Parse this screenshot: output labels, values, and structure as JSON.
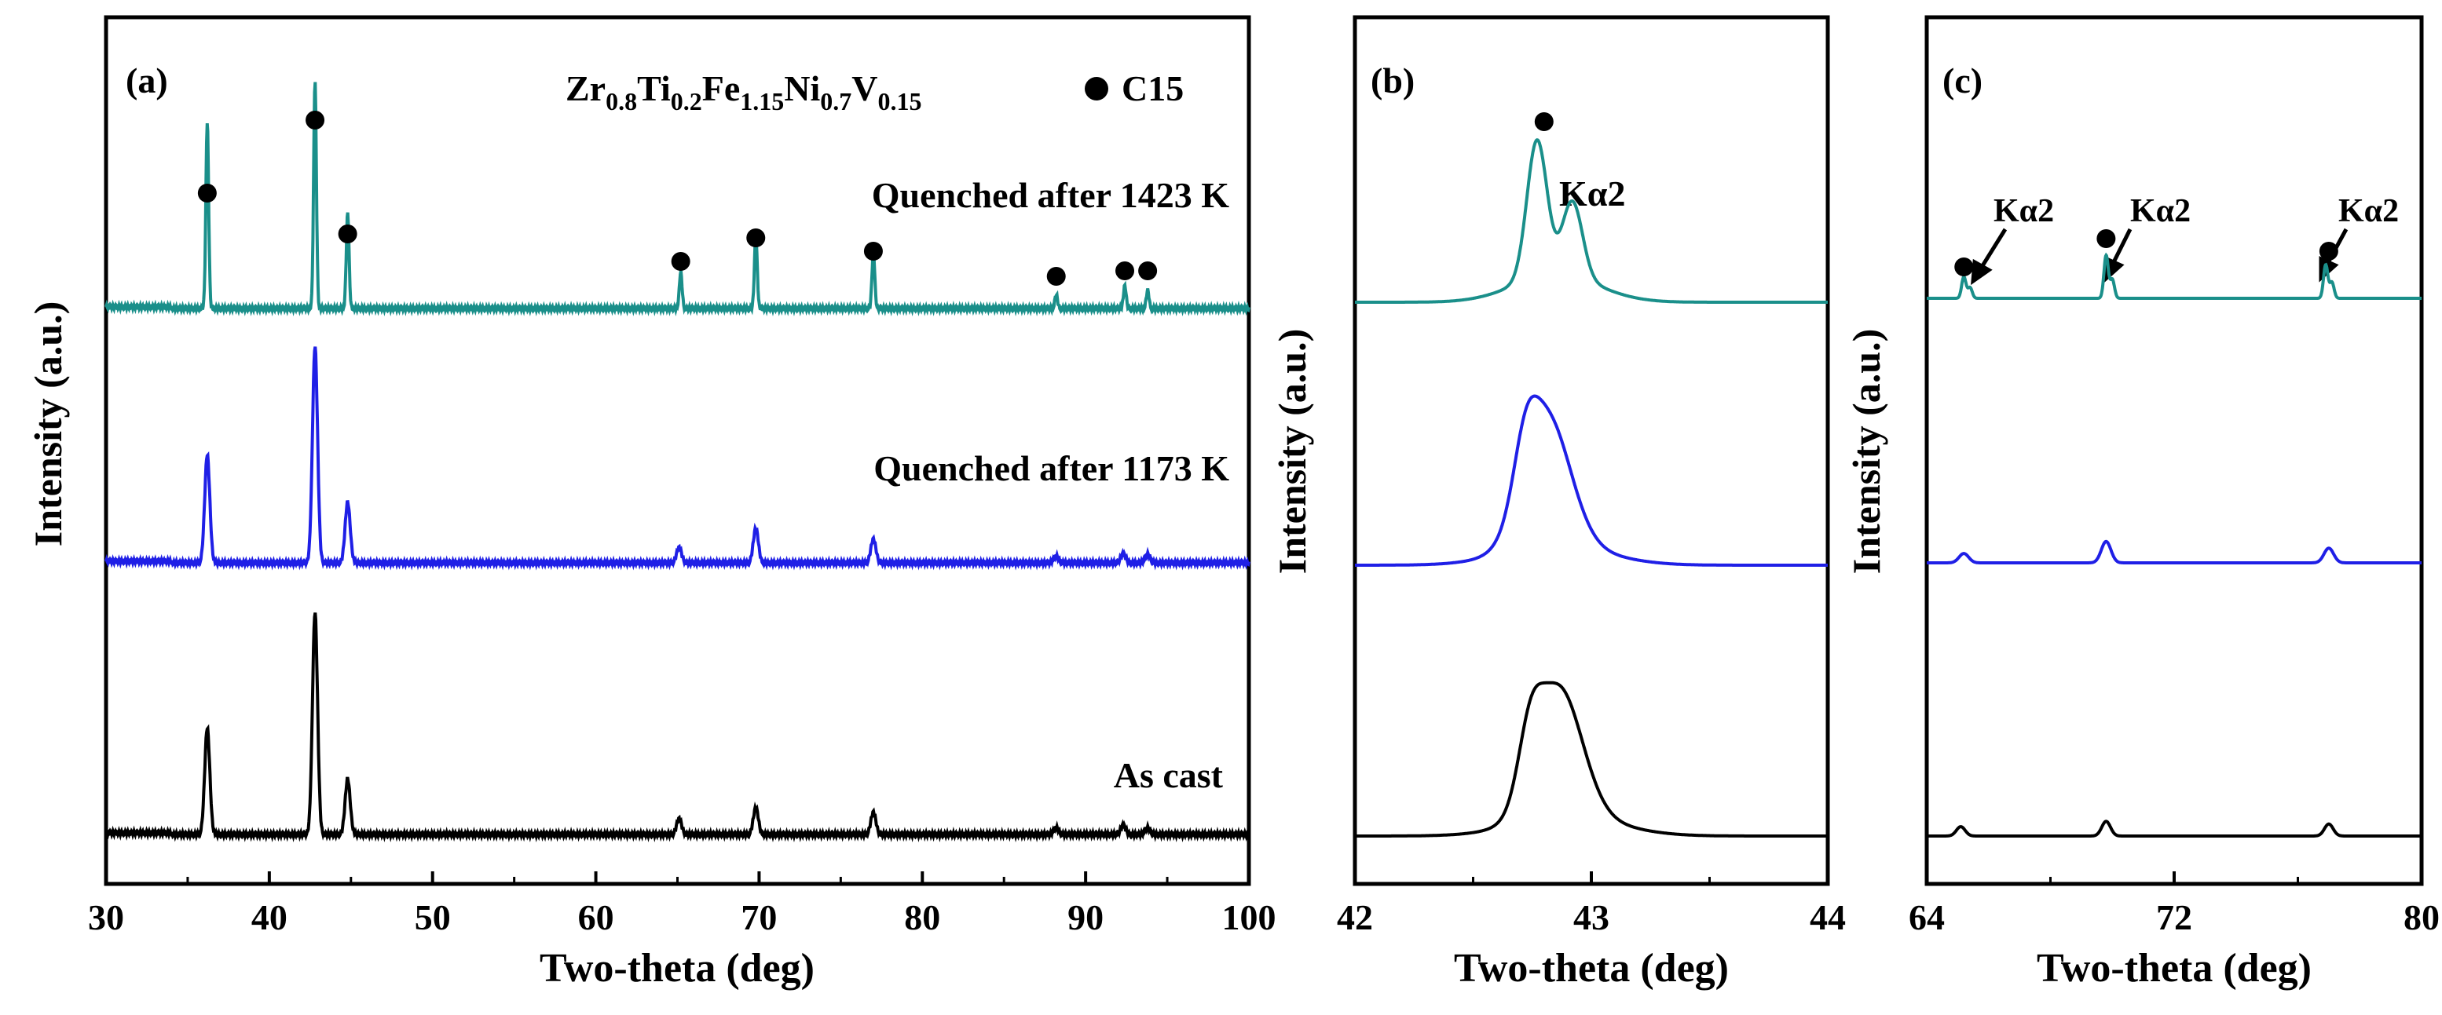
{
  "chart_data": [
    {
      "panel": "(a)",
      "type": "line",
      "xlabel": "Two-theta (deg)",
      "ylabel": "Intensity (a.u.)",
      "xlim": [
        30,
        100
      ],
      "xticks": [
        "30",
        "40",
        "50",
        "60",
        "70",
        "80",
        "90",
        "100"
      ],
      "grid": false,
      "composition": {
        "base": [
          "Zr",
          "Ti",
          "Fe",
          "Ni",
          "V"
        ],
        "sub": [
          "0.8",
          "0.2",
          "1.15",
          "0.7",
          "0.15"
        ]
      },
      "legend_marker_label": "C15",
      "series": [
        {
          "name": "Quenched after 1423 K",
          "color": "#1a8f8a",
          "offset": 2,
          "peaks": [
            [
              36.2,
              0.82
            ],
            [
              42.8,
              1.0
            ],
            [
              44.8,
              0.42
            ],
            [
              65.2,
              0.16
            ],
            [
              69.8,
              0.32
            ],
            [
              77.0,
              0.25
            ],
            [
              88.2,
              0.06
            ],
            [
              92.4,
              0.1
            ],
            [
              93.8,
              0.08
            ]
          ],
          "width": 0.12
        },
        {
          "name": "Quenched after 1173 K",
          "color": "#1f1fe6",
          "offset": 1,
          "peaks": [
            [
              36.2,
              0.5
            ],
            [
              42.8,
              1.0
            ],
            [
              44.8,
              0.28
            ],
            [
              65.1,
              0.07
            ],
            [
              69.8,
              0.16
            ],
            [
              77.0,
              0.11
            ],
            [
              88.2,
              0.03
            ],
            [
              92.3,
              0.04
            ],
            [
              93.8,
              0.04
            ]
          ],
          "width": 0.22
        },
        {
          "name": "As cast",
          "color": "#000000",
          "offset": 0,
          "peaks": [
            [
              36.2,
              0.48
            ],
            [
              42.8,
              1.0
            ],
            [
              44.8,
              0.25
            ],
            [
              65.1,
              0.07
            ],
            [
              69.8,
              0.12
            ],
            [
              77.0,
              0.1
            ],
            [
              88.2,
              0.03
            ],
            [
              92.3,
              0.04
            ],
            [
              93.8,
              0.03
            ]
          ],
          "width": 0.22
        }
      ],
      "c15_markers": [
        36.2,
        42.8,
        44.8,
        65.2,
        69.8,
        77.0,
        88.2,
        92.4,
        93.8
      ]
    },
    {
      "panel": "(b)",
      "type": "line",
      "xlabel": "Two-theta (deg)",
      "ylabel": "Intensity (a.u.)",
      "xlim": [
        42,
        44
      ],
      "xticks": [
        "42",
        "43",
        "44"
      ],
      "annotation": "Kα2",
      "c15_markers": [
        42.8
      ]
    },
    {
      "panel": "(c)",
      "type": "line",
      "xlabel": "Two-theta (deg)",
      "ylabel": "Intensity (a.u.)",
      "xlim": [
        64,
        80
      ],
      "xticks": [
        "64",
        "72",
        "80"
      ],
      "annotation": "Kα2",
      "c15_markers": [
        65.2,
        69.8,
        77.0
      ]
    }
  ]
}
